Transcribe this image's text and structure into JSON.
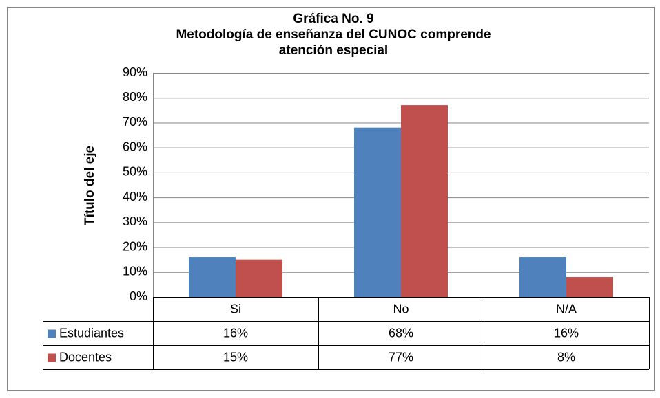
{
  "chart_data": {
    "type": "bar",
    "title": [
      "Gráfica No. 9",
      "Metodología de enseñanza  del CUNOC comprende",
      "atención especial"
    ],
    "y_label": "Título del eje",
    "categories": [
      "Si",
      "No",
      "N/A"
    ],
    "series": [
      {
        "name": "Estudiantes",
        "color": "#4f81bd",
        "values": [
          16,
          68,
          16
        ],
        "value_labels": [
          "16%",
          "68%",
          "16%"
        ]
      },
      {
        "name": "Docentes",
        "color": "#c0504d",
        "values": [
          15,
          77,
          8
        ],
        "value_labels": [
          "15%",
          "77%",
          "8%"
        ]
      }
    ],
    "ylim": [
      0,
      90
    ],
    "yticks": [
      {
        "value": 0,
        "label": "0%"
      },
      {
        "value": 10,
        "label": "10%"
      },
      {
        "value": 20,
        "label": "20%"
      },
      {
        "value": 30,
        "label": "30%"
      },
      {
        "value": 40,
        "label": "40%"
      },
      {
        "value": 50,
        "label": "50%"
      },
      {
        "value": 60,
        "label": "60%"
      },
      {
        "value": 70,
        "label": "70%"
      },
      {
        "value": 80,
        "label": "80%"
      },
      {
        "value": 90,
        "label": "90%"
      }
    ],
    "grid": true,
    "data_table": true
  }
}
